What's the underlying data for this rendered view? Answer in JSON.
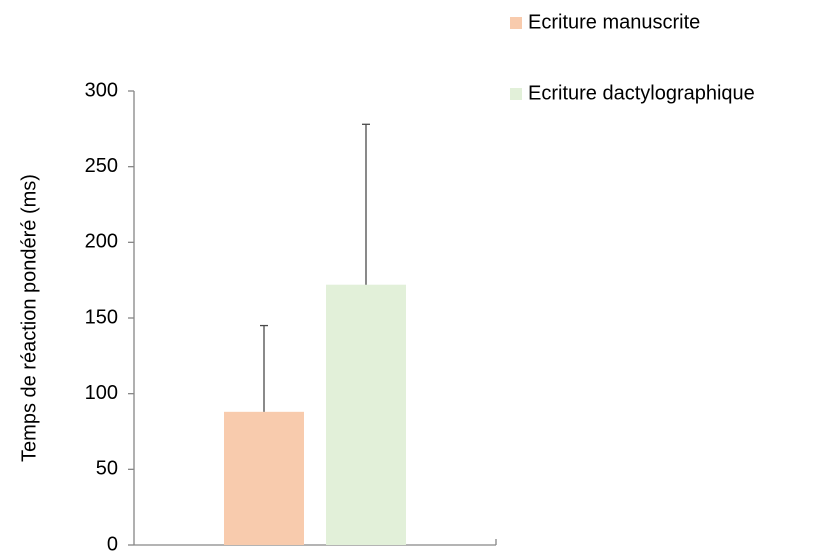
{
  "chart_data": {
    "type": "bar",
    "y_label": "Temps de réaction pondéré (ms)",
    "categories": [
      null
    ],
    "series": [
      {
        "name": "Ecriture manuscrite",
        "color": "#f8cbad",
        "values": [
          88
        ],
        "errors": [
          57
        ]
      },
      {
        "name": "Ecriture dactylographique",
        "color": "#e2f0d9",
        "values": [
          172
        ],
        "errors": [
          106
        ]
      }
    ],
    "ylim": [
      0,
      300
    ],
    "yticks": [
      0,
      50,
      100,
      150,
      200,
      250,
      300
    ],
    "grid": false,
    "legend": "top-right"
  }
}
